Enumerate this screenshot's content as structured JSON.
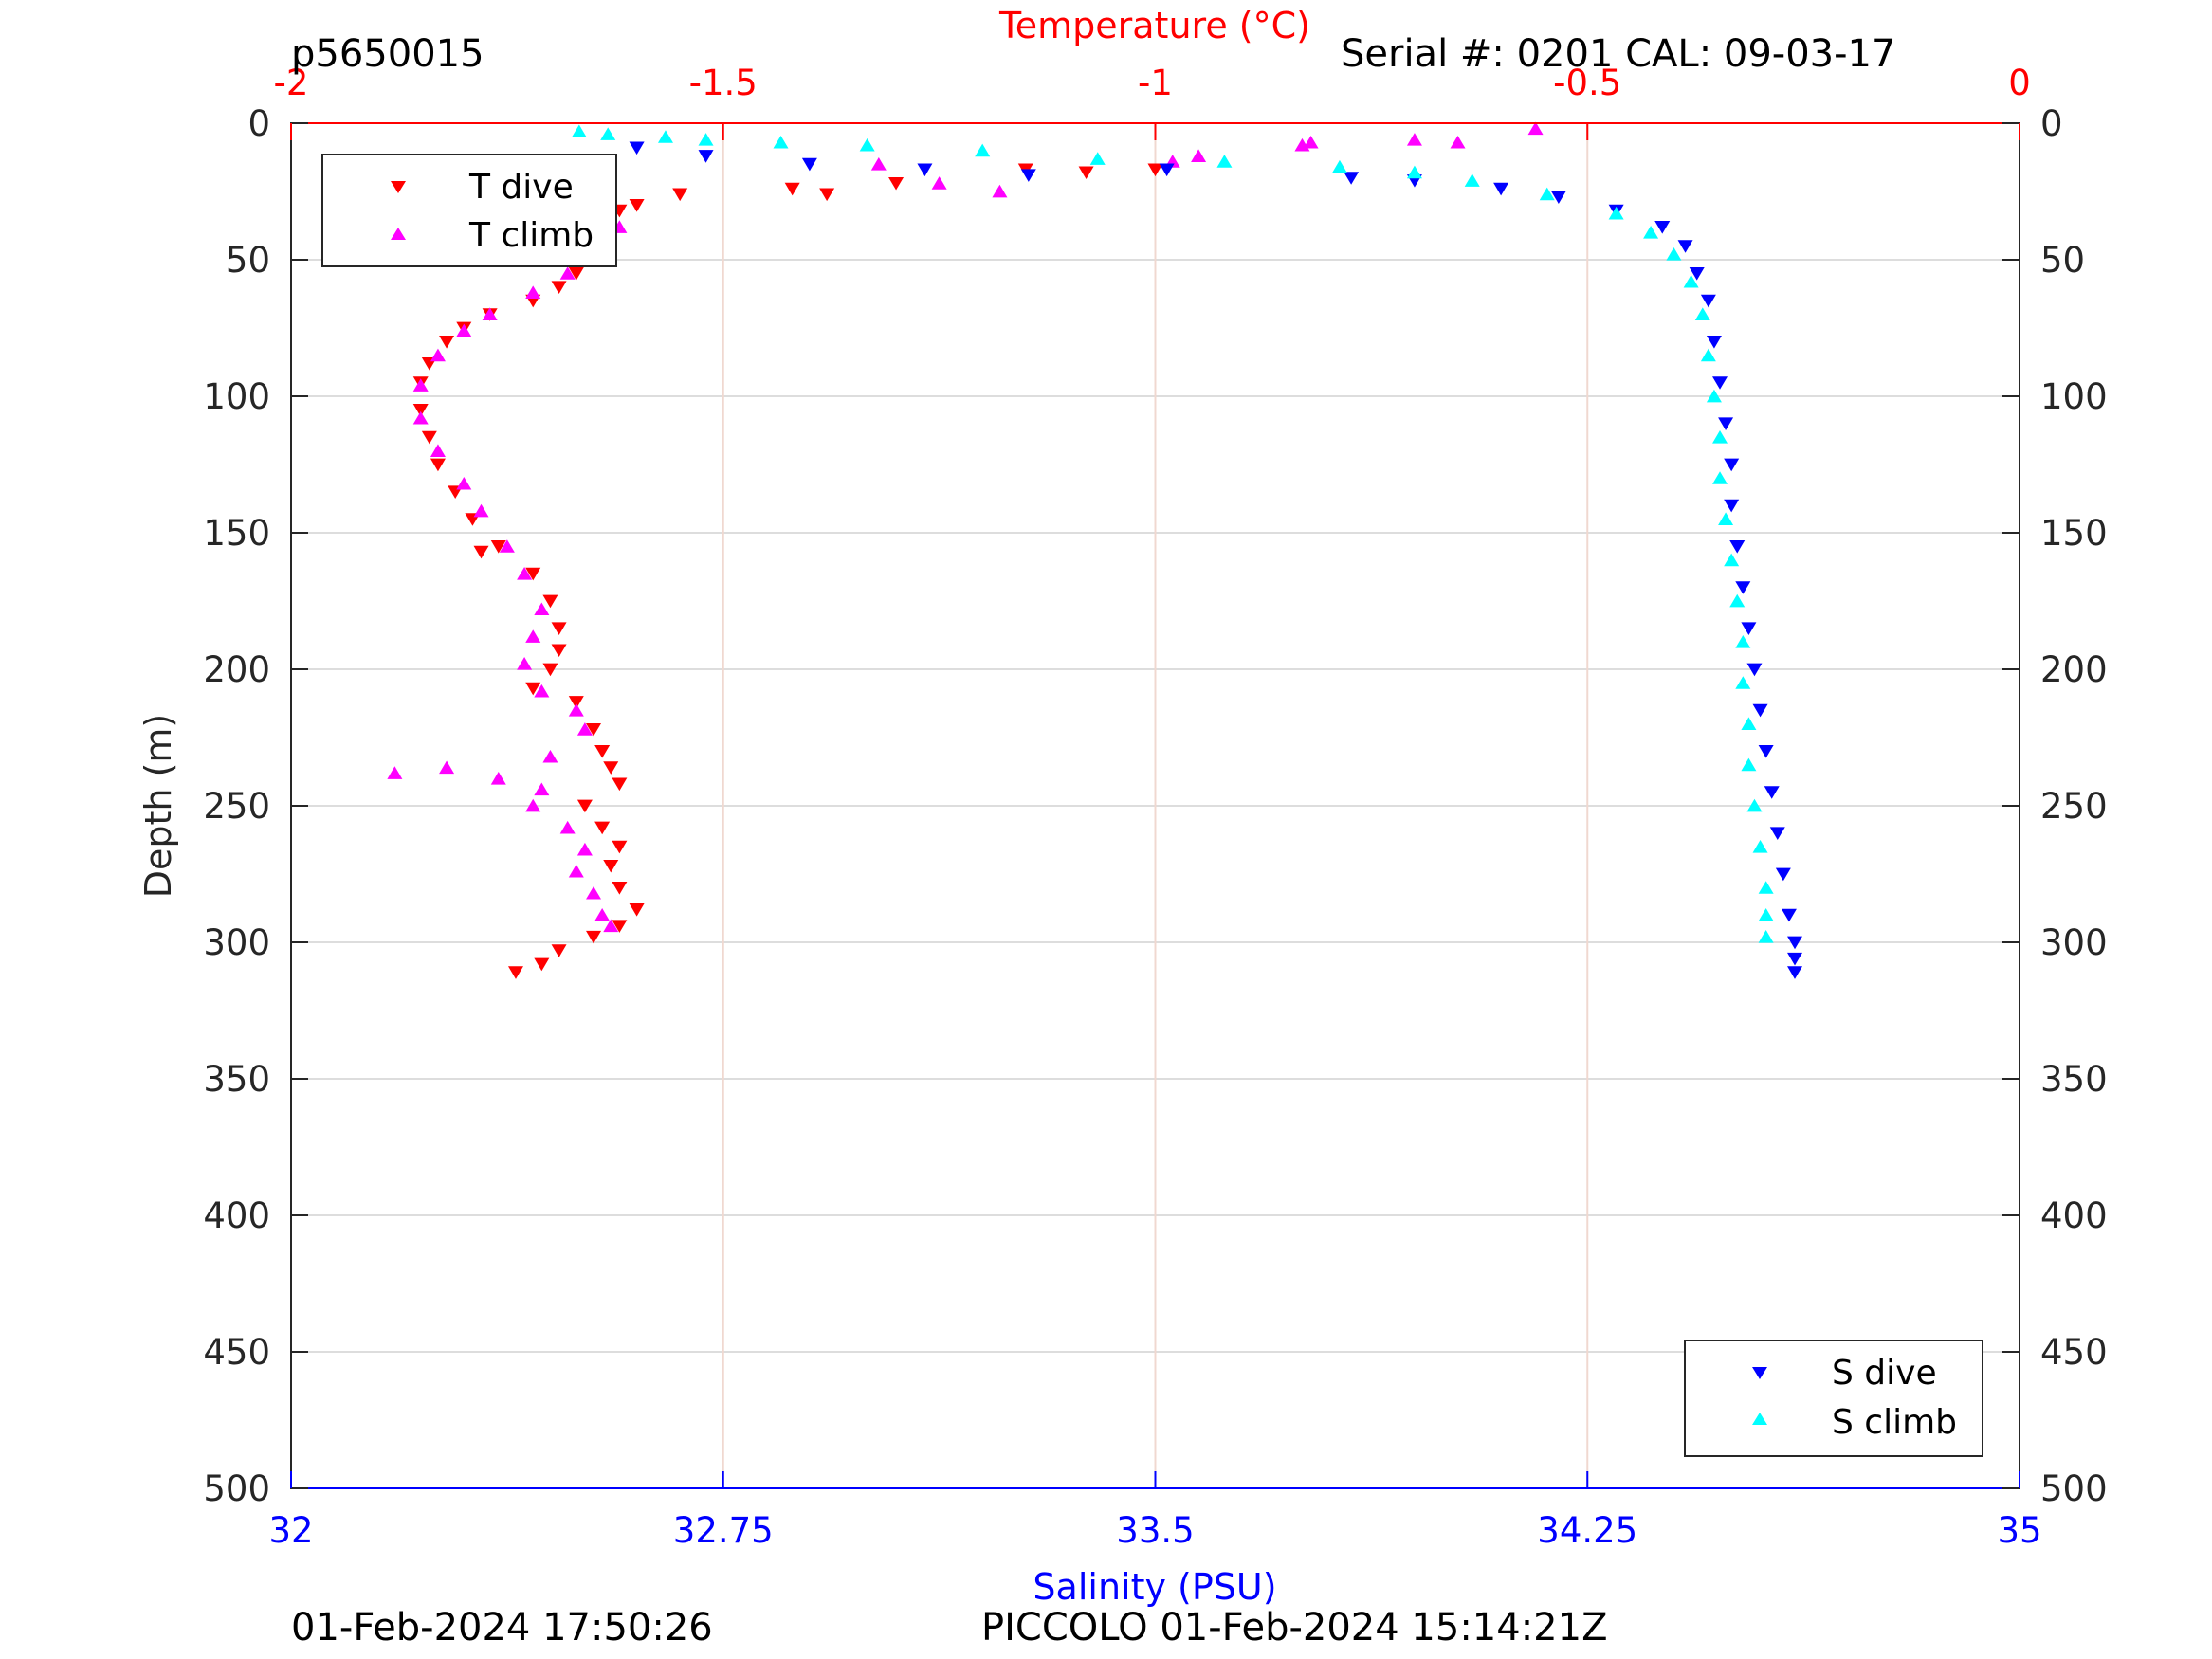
{
  "header": {
    "profile_id": "p5650015",
    "serial": "Serial #: 0201  CAL: 09-03-17"
  },
  "footer": {
    "timestamp": "01-Feb-2024 17:50:26",
    "mission": "PICCOLO 01-Feb-2024 15:14:21Z"
  },
  "colors": {
    "temperature_axis": "#ff0000",
    "salinity_axis": "#0000ff",
    "t_dive": "#ff0000",
    "t_climb": "#ff00ff",
    "s_dive": "#0000ff",
    "s_climb": "#00ffff",
    "grid": "#dddddd",
    "temp_grid": "#f0d8d0"
  },
  "chart_data": {
    "type": "scatter",
    "y_axis": {
      "label": "Depth (m)",
      "range": [
        0,
        500
      ],
      "reversed": true,
      "ticks": [
        0,
        50,
        100,
        150,
        200,
        250,
        300,
        350,
        400,
        450,
        500
      ],
      "tick_labels": [
        "0",
        "50",
        "100",
        "150",
        "200",
        "250",
        "300",
        "350",
        "400",
        "450",
        "500"
      ]
    },
    "top_axis": {
      "label": "Temperature (°C)",
      "range": [
        -2,
        0
      ],
      "ticks": [
        -2,
        -1.5,
        -1,
        -0.5,
        0
      ],
      "tick_labels": [
        "-2",
        "-1.5",
        "-1",
        "-0.5",
        "0"
      ]
    },
    "bottom_axis": {
      "label": "Salinity (PSU)",
      "range": [
        32,
        35
      ],
      "ticks": [
        32,
        32.75,
        33.5,
        34.25,
        35
      ],
      "tick_labels": [
        "32",
        "32.75",
        "33.5",
        "34.25",
        "35"
      ]
    },
    "grid": true,
    "legends": [
      {
        "position": "top-left",
        "entries": [
          {
            "name": "T dive",
            "marker": "triangle-down"
          },
          {
            "name": "T climb",
            "marker": "triangle-up"
          }
        ]
      },
      {
        "position": "bottom-right",
        "entries": [
          {
            "name": "S dive",
            "marker": "triangle-down"
          },
          {
            "name": "S climb",
            "marker": "triangle-up"
          }
        ]
      }
    ],
    "series": [
      {
        "name": "T dive",
        "axis": "temperature",
        "marker": "triangle-down",
        "points": [
          [
            -1.0,
            17
          ],
          [
            -1.08,
            18
          ],
          [
            -1.15,
            17
          ],
          [
            -1.3,
            22
          ],
          [
            -1.38,
            26
          ],
          [
            -1.42,
            24
          ],
          [
            -1.55,
            26
          ],
          [
            -1.6,
            30
          ],
          [
            -1.62,
            32
          ],
          [
            -1.63,
            35
          ],
          [
            -1.64,
            40
          ],
          [
            -1.65,
            45
          ],
          [
            -1.66,
            50
          ],
          [
            -1.67,
            55
          ],
          [
            -1.69,
            60
          ],
          [
            -1.72,
            65
          ],
          [
            -1.77,
            70
          ],
          [
            -1.8,
            75
          ],
          [
            -1.82,
            80
          ],
          [
            -1.84,
            88
          ],
          [
            -1.85,
            95
          ],
          [
            -1.85,
            105
          ],
          [
            -1.84,
            115
          ],
          [
            -1.83,
            125
          ],
          [
            -1.81,
            135
          ],
          [
            -1.79,
            145
          ],
          [
            -1.76,
            155
          ],
          [
            -1.78,
            157
          ],
          [
            -1.72,
            165
          ],
          [
            -1.7,
            175
          ],
          [
            -1.69,
            185
          ],
          [
            -1.69,
            193
          ],
          [
            -1.7,
            200
          ],
          [
            -1.72,
            207
          ],
          [
            -1.67,
            212
          ],
          [
            -1.65,
            222
          ],
          [
            -1.64,
            230
          ],
          [
            -1.63,
            236
          ],
          [
            -1.62,
            242
          ],
          [
            -1.66,
            250
          ],
          [
            -1.64,
            258
          ],
          [
            -1.62,
            265
          ],
          [
            -1.63,
            272
          ],
          [
            -1.62,
            280
          ],
          [
            -1.6,
            288
          ],
          [
            -1.62,
            294
          ],
          [
            -1.65,
            298
          ],
          [
            -1.69,
            303
          ],
          [
            -1.71,
            308
          ],
          [
            -1.74,
            311
          ]
        ]
      },
      {
        "name": "T climb",
        "axis": "temperature",
        "marker": "triangle-up",
        "points": [
          [
            -1.66,
            47
          ],
          [
            -1.64,
            42
          ],
          [
            -1.62,
            38
          ],
          [
            -1.68,
            55
          ],
          [
            -1.72,
            62
          ],
          [
            -1.77,
            70
          ],
          [
            -1.8,
            76
          ],
          [
            -1.83,
            85
          ],
          [
            -1.85,
            96
          ],
          [
            -1.85,
            108
          ],
          [
            -1.83,
            120
          ],
          [
            -1.8,
            132
          ],
          [
            -1.78,
            142
          ],
          [
            -1.75,
            155
          ],
          [
            -1.73,
            165
          ],
          [
            -1.71,
            178
          ],
          [
            -1.72,
            188
          ],
          [
            -1.73,
            198
          ],
          [
            -1.71,
            208
          ],
          [
            -1.67,
            215
          ],
          [
            -1.66,
            222
          ],
          [
            -1.7,
            232
          ],
          [
            -1.82,
            236
          ],
          [
            -1.88,
            238
          ],
          [
            -1.76,
            240
          ],
          [
            -1.71,
            244
          ],
          [
            -1.72,
            250
          ],
          [
            -1.68,
            258
          ],
          [
            -1.66,
            266
          ],
          [
            -1.67,
            274
          ],
          [
            -1.65,
            282
          ],
          [
            -1.64,
            290
          ],
          [
            -1.63,
            294
          ],
          [
            -1.32,
            15
          ],
          [
            -1.25,
            22
          ],
          [
            -1.18,
            25
          ],
          [
            -0.98,
            14
          ],
          [
            -0.95,
            12
          ],
          [
            -0.83,
            8
          ],
          [
            -0.82,
            7
          ],
          [
            -0.7,
            6
          ],
          [
            -0.65,
            7
          ],
          [
            -0.56,
            2
          ]
        ]
      },
      {
        "name": "S dive",
        "axis": "salinity",
        "marker": "triangle-down",
        "points": [
          [
            32.6,
            9
          ],
          [
            32.72,
            12
          ],
          [
            32.9,
            15
          ],
          [
            33.1,
            17
          ],
          [
            33.28,
            19
          ],
          [
            33.52,
            17
          ],
          [
            33.84,
            20
          ],
          [
            33.95,
            21
          ],
          [
            34.1,
            24
          ],
          [
            34.2,
            27
          ],
          [
            34.3,
            32
          ],
          [
            34.38,
            38
          ],
          [
            34.42,
            45
          ],
          [
            34.44,
            55
          ],
          [
            34.46,
            65
          ],
          [
            34.47,
            80
          ],
          [
            34.48,
            95
          ],
          [
            34.49,
            110
          ],
          [
            34.5,
            125
          ],
          [
            34.5,
            140
          ],
          [
            34.51,
            155
          ],
          [
            34.52,
            170
          ],
          [
            34.53,
            185
          ],
          [
            34.54,
            200
          ],
          [
            34.55,
            215
          ],
          [
            34.56,
            230
          ],
          [
            34.57,
            245
          ],
          [
            34.58,
            260
          ],
          [
            34.59,
            275
          ],
          [
            34.6,
            290
          ],
          [
            34.61,
            300
          ],
          [
            34.61,
            306
          ],
          [
            34.61,
            311
          ]
        ]
      },
      {
        "name": "S climb",
        "axis": "salinity",
        "marker": "triangle-up",
        "points": [
          [
            32.5,
            3
          ],
          [
            32.55,
            4
          ],
          [
            32.65,
            5
          ],
          [
            32.72,
            6
          ],
          [
            32.85,
            7
          ],
          [
            33.0,
            8
          ],
          [
            33.2,
            10
          ],
          [
            33.4,
            13
          ],
          [
            33.62,
            14
          ],
          [
            33.82,
            16
          ],
          [
            33.95,
            18
          ],
          [
            34.05,
            21
          ],
          [
            34.18,
            26
          ],
          [
            34.3,
            33
          ],
          [
            34.36,
            40
          ],
          [
            34.4,
            48
          ],
          [
            34.43,
            58
          ],
          [
            34.45,
            70
          ],
          [
            34.46,
            85
          ],
          [
            34.47,
            100
          ],
          [
            34.48,
            115
          ],
          [
            34.48,
            130
          ],
          [
            34.49,
            145
          ],
          [
            34.5,
            160
          ],
          [
            34.51,
            175
          ],
          [
            34.52,
            190
          ],
          [
            34.52,
            205
          ],
          [
            34.53,
            220
          ],
          [
            34.53,
            235
          ],
          [
            34.54,
            250
          ],
          [
            34.55,
            265
          ],
          [
            34.56,
            280
          ],
          [
            34.56,
            290
          ],
          [
            34.56,
            298
          ]
        ]
      }
    ]
  }
}
